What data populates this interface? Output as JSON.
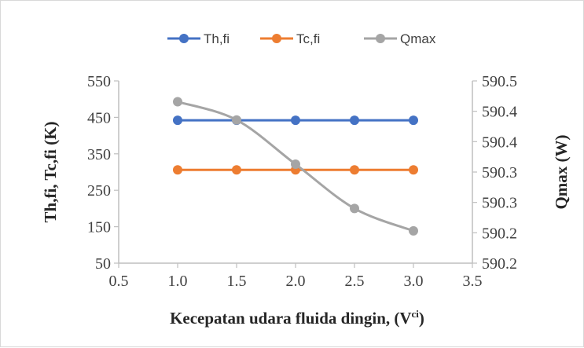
{
  "chart_data": {
    "type": "line",
    "title": "",
    "xlabel": "Kecepatan udara fluida dingin, (V",
    "xlabel_sup": "ci",
    "xlabel_suffix": ")",
    "ylabel": "Th,fi, Tc,fi (K)",
    "y2label": "Qmax (W)",
    "xlim": [
      0.5,
      3.5
    ],
    "ylim": [
      50,
      550
    ],
    "y2lim": [
      590.2,
      590.55
    ],
    "x_ticks": [
      "0.5",
      "1.0",
      "1.5",
      "2.0",
      "2.5",
      "3.0",
      "3.5"
    ],
    "y_ticks": [
      "50",
      "150",
      "250",
      "350",
      "450",
      "550"
    ],
    "y2_ticks": [
      "590.2",
      "590.2",
      "590.3",
      "590.3",
      "590.4",
      "590.4",
      "590.5"
    ],
    "legend_position": "top",
    "series": [
      {
        "name": "Th,fi",
        "axis": "left",
        "color": "#4472c4",
        "smooth": false,
        "x": [
          1.0,
          1.5,
          2.0,
          2.5,
          3.0
        ],
        "y": [
          442,
          442,
          442,
          442,
          442
        ]
      },
      {
        "name": "Tc,fi",
        "axis": "left",
        "color": "#ed7d31",
        "smooth": false,
        "x": [
          1.0,
          1.5,
          2.0,
          2.5,
          3.0
        ],
        "y": [
          306,
          306,
          306,
          306,
          306
        ]
      },
      {
        "name": "Qmax",
        "axis": "right",
        "color": "#a5a5a5",
        "smooth": true,
        "x": [
          1.0,
          1.5,
          2.0,
          2.5,
          3.0
        ],
        "y": [
          590.51,
          590.475,
          590.39,
          590.305,
          590.262
        ]
      }
    ]
  }
}
